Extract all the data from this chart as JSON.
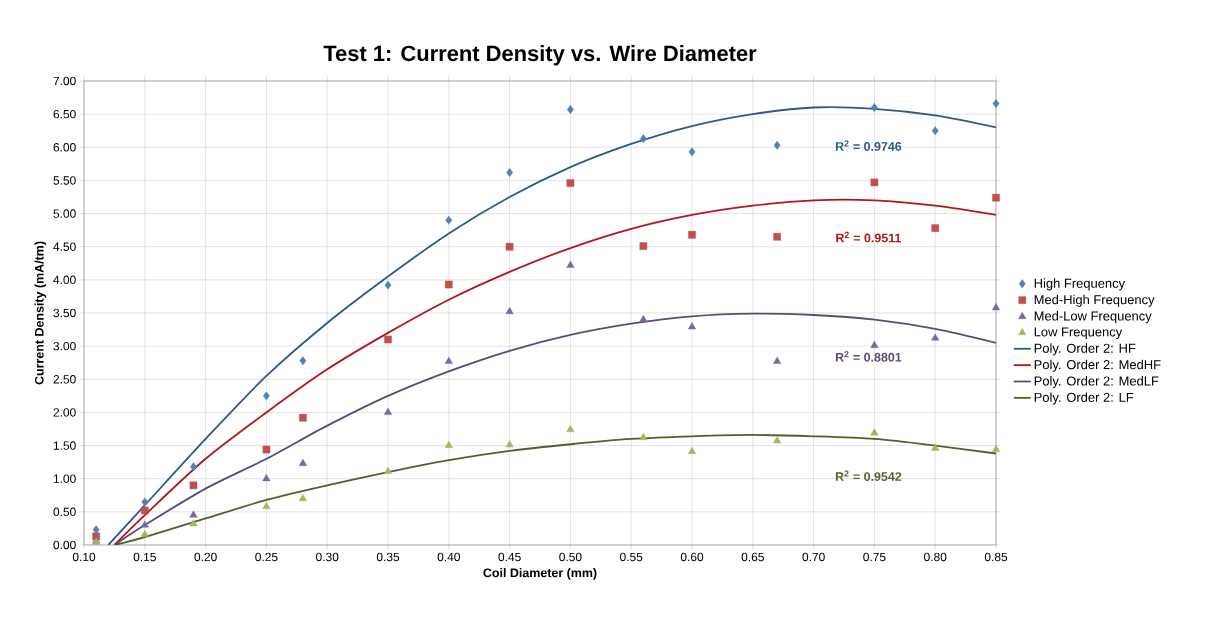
{
  "chart_data": {
    "type": "scatter",
    "title": "Test 1: Current Density vs. Wire Diameter",
    "xlabel": "Coil Diameter (mm)",
    "ylabel": "Current Density (mA/tm)",
    "xlim": [
      0.1,
      0.85
    ],
    "ylim": [
      0,
      7
    ],
    "xticks": [
      {
        "value": 0.1,
        "label": "0.10"
      },
      {
        "value": 0.15,
        "label": "0.15"
      },
      {
        "value": 0.2,
        "label": "0.20"
      },
      {
        "value": 0.25,
        "label": "0.25"
      },
      {
        "value": 0.3,
        "label": "0.30"
      },
      {
        "value": 0.35,
        "label": "0.35"
      },
      {
        "value": 0.4,
        "label": "0.40"
      },
      {
        "value": 0.45,
        "label": "0.45"
      },
      {
        "value": 0.5,
        "label": "0.50"
      },
      {
        "value": 0.55,
        "label": "0.55"
      },
      {
        "value": 0.6,
        "label": "0.60"
      },
      {
        "value": 0.65,
        "label": "0.65"
      },
      {
        "value": 0.7,
        "label": "0.70"
      },
      {
        "value": 0.75,
        "label": "0.75"
      },
      {
        "value": 0.8,
        "label": "0.80"
      },
      {
        "value": 0.85,
        "label": "0.85"
      }
    ],
    "yticks": [
      {
        "value": 0,
        "label": "0.00"
      },
      {
        "value": 0.5,
        "label": "0.50"
      },
      {
        "value": 1,
        "label": "1.00"
      },
      {
        "value": 1.5,
        "label": "1.50"
      },
      {
        "value": 2,
        "label": "2.00"
      },
      {
        "value": 2.5,
        "label": "2.50"
      },
      {
        "value": 3,
        "label": "3.00"
      },
      {
        "value": 3.5,
        "label": "3.50"
      },
      {
        "value": 4,
        "label": "4.00"
      },
      {
        "value": 4.5,
        "label": "4.50"
      },
      {
        "value": 5,
        "label": "5.00"
      },
      {
        "value": 5.5,
        "label": "5.50"
      },
      {
        "value": 6,
        "label": "6.00"
      },
      {
        "value": 6.5,
        "label": "6.50"
      },
      {
        "value": 7,
        "label": "7.00"
      }
    ],
    "grid": true,
    "legend": "right",
    "x": [
      0.11,
      0.15,
      0.19,
      0.25,
      0.28,
      0.35,
      0.4,
      0.45,
      0.5,
      0.56,
      0.6,
      0.67,
      0.75,
      0.8,
      0.85
    ],
    "series": [
      {
        "name": "High Frequency",
        "marker": "diamond",
        "color": "#4f81bd",
        "values": [
          0.23,
          0.65,
          1.18,
          2.25,
          2.78,
          3.92,
          4.9,
          5.62,
          6.57,
          6.13,
          5.93,
          6.03,
          6.6,
          6.25,
          6.66
        ]
      },
      {
        "name": "Med-High Frequency",
        "marker": "square",
        "color": "#c0504d",
        "values": [
          0.13,
          0.52,
          0.9,
          1.44,
          1.92,
          3.1,
          3.93,
          4.5,
          5.46,
          4.51,
          4.68,
          4.65,
          5.47,
          4.78,
          5.24
        ]
      },
      {
        "name": "Med-Low Frequency",
        "marker": "triangle",
        "color": "#8064a2",
        "values": [
          0.06,
          0.3,
          0.45,
          1.0,
          1.23,
          2.0,
          2.77,
          3.52,
          4.22,
          3.4,
          3.29,
          2.77,
          3.01,
          3.12,
          3.58
        ]
      },
      {
        "name": "Low Frequency",
        "marker": "triangle",
        "color": "#9bbb59",
        "values": [
          0.04,
          0.16,
          0.32,
          0.58,
          0.7,
          1.11,
          1.5,
          1.51,
          1.74,
          1.62,
          1.41,
          1.57,
          1.69,
          1.46,
          1.44
        ]
      },
      {
        "name": "Poly. Order 2: HF",
        "type": "line",
        "marker": "none",
        "line_style": "solid",
        "color": "#2c5a8a",
        "x": [
          0.12,
          0.15,
          0.2,
          0.25,
          0.3,
          0.35,
          0.4,
          0.45,
          0.5,
          0.55,
          0.6,
          0.65,
          0.7,
          0.75,
          0.8,
          0.85
        ],
        "values": [
          0,
          0.6,
          1.6,
          2.55,
          3.35,
          4.05,
          4.7,
          5.25,
          5.7,
          6.05,
          6.32,
          6.5,
          6.6,
          6.58,
          6.48,
          6.3
        ]
      },
      {
        "name": "Poly. Order 2: MedHF",
        "type": "line",
        "marker": "none",
        "line_style": "solid",
        "color": "#b01818",
        "x": [
          0.125,
          0.15,
          0.2,
          0.25,
          0.3,
          0.35,
          0.4,
          0.45,
          0.5,
          0.55,
          0.6,
          0.65,
          0.7,
          0.75,
          0.8,
          0.85
        ],
        "values": [
          0,
          0.45,
          1.3,
          2.0,
          2.65,
          3.2,
          3.7,
          4.12,
          4.48,
          4.77,
          4.98,
          5.12,
          5.2,
          5.2,
          5.12,
          4.98
        ]
      },
      {
        "name": "Poly. Order 2: MedLF",
        "type": "line",
        "marker": "none",
        "line_style": "solid",
        "color": "#5f497a",
        "x": [
          0.125,
          0.15,
          0.2,
          0.25,
          0.3,
          0.35,
          0.4,
          0.45,
          0.5,
          0.55,
          0.6,
          0.65,
          0.7,
          0.75,
          0.8,
          0.85
        ],
        "values": [
          0,
          0.3,
          0.85,
          1.3,
          1.8,
          2.25,
          2.62,
          2.93,
          3.17,
          3.34,
          3.45,
          3.49,
          3.47,
          3.4,
          3.26,
          3.05
        ]
      },
      {
        "name": "Poly. Order 2: LF",
        "type": "line",
        "marker": "none",
        "line_style": "solid",
        "color": "#4f6228",
        "x": [
          0.125,
          0.15,
          0.2,
          0.25,
          0.3,
          0.35,
          0.4,
          0.45,
          0.5,
          0.55,
          0.6,
          0.65,
          0.7,
          0.75,
          0.8,
          0.85
        ],
        "values": [
          0,
          0.12,
          0.4,
          0.68,
          0.9,
          1.1,
          1.28,
          1.42,
          1.52,
          1.6,
          1.64,
          1.66,
          1.64,
          1.6,
          1.5,
          1.38
        ]
      }
    ],
    "annotations": [
      "R$^{2}$ = 0.9746",
      "R$^{2}$ = 0.9511",
      "R$^{2}$ = 0.8801",
      "R$^{2}$ = 0.9542"
    ]
  }
}
